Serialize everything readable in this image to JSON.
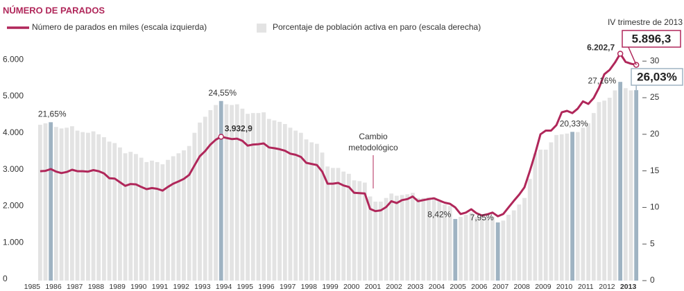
{
  "chart_data": {
    "type": "bar-line",
    "title": "NÚMERO DE PARADOS",
    "categories": [
      "1985",
      null,
      null,
      null,
      "1986",
      null,
      null,
      null,
      "1987",
      null,
      null,
      null,
      "1988",
      null,
      null,
      null,
      "1989",
      null,
      null,
      null,
      "1990",
      null,
      null,
      null,
      "1991",
      null,
      null,
      null,
      "1992",
      null,
      null,
      null,
      "1993",
      null,
      null,
      null,
      "1994",
      null,
      null,
      null,
      "1995",
      null,
      null,
      null,
      "1996",
      null,
      null,
      null,
      "1997",
      null,
      null,
      null,
      "1998",
      null,
      null,
      null,
      "1999",
      null,
      null,
      null,
      "2000",
      null,
      null,
      null,
      "2001",
      null,
      null,
      null,
      "2002",
      null,
      null,
      null,
      "2003",
      null,
      null,
      null,
      "2004",
      null,
      null,
      null,
      "2005",
      null,
      null,
      null,
      "2006",
      null,
      null,
      null,
      "2007",
      null,
      null,
      null,
      "2008",
      null,
      null,
      null,
      "2009",
      null,
      null,
      null,
      "2010",
      null,
      null,
      null,
      "2011",
      null,
      null,
      null,
      "2012",
      null,
      null,
      null,
      "2013",
      null,
      null,
      null
    ],
    "series": [
      {
        "name": "Número de parados en miles (escala izquierda)",
        "kind": "line",
        "color": "#b0275a",
        "values": [
          null,
          null,
          null,
          2990,
          3000,
          3050,
          2980,
          2940,
          2970,
          3030,
          2990,
          2990,
          2980,
          3020,
          2990,
          2930,
          2800,
          2790,
          2690,
          2590,
          2640,
          2630,
          2560,
          2500,
          2530,
          2510,
          2460,
          2560,
          2650,
          2710,
          2780,
          2890,
          3150,
          3400,
          3540,
          3720,
          3850,
          3932.9,
          3900,
          3870,
          3880,
          3820,
          3690,
          3720,
          3730,
          3750,
          3640,
          3620,
          3590,
          3550,
          3470,
          3440,
          3380,
          3220,
          3190,
          3160,
          2980,
          2650,
          2650,
          2670,
          2600,
          2560,
          2400,
          2390,
          2380,
          1960,
          1900,
          1920,
          2010,
          2170,
          2120,
          2200,
          2230,
          2300,
          2170,
          2200,
          2230,
          2250,
          2190,
          2130,
          2100,
          2000,
          1820,
          1860,
          1950,
          1840,
          1780,
          1810,
          1860,
          1760,
          1820,
          2000,
          2180,
          2350,
          2550,
          2990,
          3470,
          4000,
          4100,
          4100,
          4250,
          4600,
          4640,
          4580,
          4700,
          4900,
          4830,
          4990,
          5270,
          5640,
          5760,
          5960,
          6202.7,
          5980,
          5930,
          5896.3
        ],
        "value_labels": [
          null,
          null,
          null,
          null,
          null,
          null,
          null,
          null,
          null,
          null,
          null,
          null,
          null,
          null,
          null,
          null,
          null,
          null,
          null,
          null,
          null,
          null,
          null,
          null,
          null,
          null,
          null,
          null,
          null,
          null,
          null,
          null,
          null,
          null,
          null,
          null,
          null,
          "3.932,9",
          null,
          null,
          null,
          null,
          null,
          null,
          null,
          null,
          null,
          null,
          null,
          null,
          null,
          null,
          null,
          null,
          null,
          null,
          null,
          null,
          null,
          null,
          null,
          null,
          null,
          null,
          null,
          null,
          null,
          null,
          null,
          null,
          null,
          null,
          null,
          null,
          null,
          null,
          null,
          null,
          null,
          null,
          null,
          null,
          null,
          null,
          null,
          null,
          null,
          null,
          null,
          null,
          null,
          null,
          null,
          null,
          null,
          null,
          null,
          null,
          null,
          null,
          null,
          null,
          null,
          null,
          null,
          null,
          null,
          null,
          null,
          null,
          null,
          null,
          "6.202,7",
          null,
          null,
          "5.896,3"
        ]
      },
      {
        "name": "Porcentaje de población activa en paro (escala derecha)",
        "kind": "bar",
        "axis": "y2",
        "color": "#e3e3e3",
        "highlight_color": "#9fb3c2",
        "values": [
          null,
          null,
          null,
          21.3,
          21.5,
          21.65,
          21.0,
          20.8,
          20.9,
          21.1,
          20.5,
          20.3,
          20.2,
          20.4,
          20.0,
          19.6,
          19.0,
          18.8,
          18.2,
          17.4,
          17.6,
          17.3,
          16.8,
          16.2,
          16.4,
          16.2,
          15.9,
          16.5,
          17.0,
          17.4,
          17.8,
          18.4,
          20.2,
          21.6,
          22.4,
          23.3,
          24.0,
          24.55,
          24.1,
          24.0,
          24.1,
          23.5,
          22.8,
          22.9,
          22.9,
          23.0,
          22.1,
          21.9,
          21.7,
          21.4,
          20.9,
          20.5,
          20.2,
          19.3,
          18.9,
          18.7,
          17.5,
          15.6,
          15.4,
          15.4,
          14.9,
          14.6,
          13.7,
          13.6,
          13.4,
          11.5,
          10.8,
          10.8,
          11.3,
          11.9,
          11.6,
          11.7,
          11.8,
          12.0,
          11.3,
          11.3,
          11.4,
          11.4,
          10.9,
          10.4,
          10.2,
          8.42,
          8.7,
          9.0,
          9.3,
          8.7,
          8.5,
          8.5,
          8.7,
          7.95,
          8.2,
          9.0,
          9.6,
          10.4,
          11.3,
          13.9,
          17.4,
          17.9,
          17.9,
          18.9,
          19.9,
          20.0,
          20.1,
          20.33,
          20.3,
          20.9,
          21.5,
          22.9,
          24.4,
          24.6,
          25.0,
          26.0,
          27.16,
          26.3,
          26.0,
          26.03
        ],
        "value_labels": [
          null,
          null,
          null,
          null,
          null,
          "21,65%",
          null,
          null,
          null,
          null,
          null,
          null,
          null,
          null,
          null,
          null,
          null,
          null,
          null,
          null,
          null,
          null,
          null,
          null,
          null,
          null,
          null,
          null,
          null,
          null,
          null,
          null,
          null,
          null,
          null,
          null,
          null,
          "24,55%",
          null,
          null,
          null,
          null,
          null,
          null,
          null,
          null,
          null,
          null,
          null,
          null,
          null,
          null,
          null,
          null,
          null,
          null,
          null,
          null,
          null,
          null,
          null,
          null,
          null,
          null,
          null,
          null,
          null,
          null,
          null,
          null,
          null,
          null,
          null,
          null,
          null,
          null,
          null,
          null,
          null,
          null,
          null,
          "8,42%",
          null,
          null,
          null,
          null,
          null,
          null,
          null,
          "7,95%",
          null,
          null,
          null,
          null,
          null,
          null,
          null,
          null,
          null,
          null,
          null,
          null,
          null,
          "20,33%",
          null,
          null,
          null,
          null,
          null,
          null,
          null,
          null,
          "27,16%",
          null,
          null,
          "26,03%"
        ]
      }
    ],
    "annotations": [
      "Cambio metodológico",
      "IV trimestre de 2013"
    ],
    "ylim": [
      0,
      6500
    ],
    "yticks": [
      0,
      {
        "value": 1000,
        "label": "1.000"
      },
      {
        "value": 2000,
        "label": "2.000"
      },
      {
        "value": 3000,
        "label": "3.000"
      },
      {
        "value": 4000,
        "label": "4.000"
      },
      {
        "value": 5000,
        "label": "5.000"
      },
      {
        "value": 6000,
        "label": "6.000"
      }
    ],
    "y2lim": [
      0,
      32.5
    ],
    "y2ticks": [
      0,
      5,
      10,
      15,
      20,
      25,
      30
    ],
    "grid": false
  }
}
